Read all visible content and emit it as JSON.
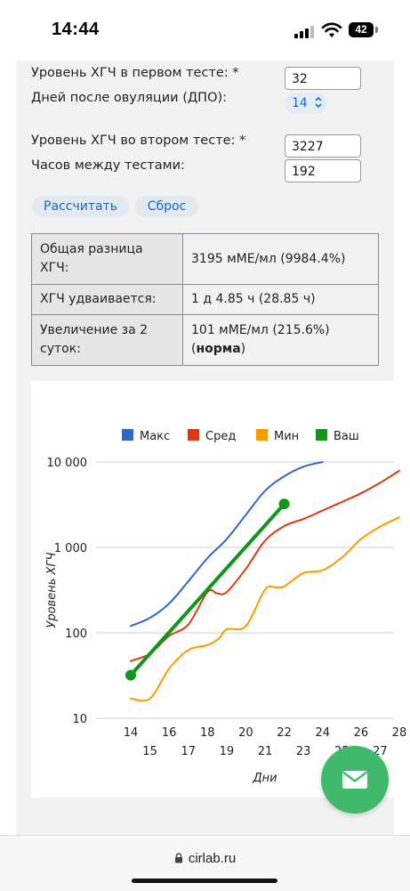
{
  "status_bar": {
    "time": "14:44",
    "battery": "42"
  },
  "form": {
    "hcg1_label": "Уровень ХГЧ в первом тесте: *",
    "hcg1_value": "32",
    "dpo_label": "Дней после овуляции (ДПО):",
    "dpo_value": "14",
    "hcg2_label": "Уровень ХГЧ во втором тесте: *",
    "hcg2_value": "3227",
    "hours_label": "Часов между тестами:",
    "hours_value": "192",
    "calculate_label": "Рассчитать",
    "reset_label": "Сброс"
  },
  "results": {
    "rows": [
      {
        "key": "Общая разница ХГЧ:",
        "value": "3195 мМЕ/мл (9984.4%)"
      },
      {
        "key": "ХГЧ удваивается:",
        "value": "1 д 4.85 ч (28.85 ч)"
      },
      {
        "key": "Увеличение за 2 суток:",
        "value_prefix": "101 мМЕ/мл (215.6%) (",
        "value_bold": "норма",
        "value_suffix": ")"
      }
    ]
  },
  "chart_data": {
    "type": "line",
    "legend_position": "top",
    "series": [
      {
        "name": "Макс",
        "color": "#3366cc",
        "x": [
          14,
          15,
          16,
          17,
          18,
          19,
          20,
          21,
          22,
          23,
          24
        ],
        "values": [
          120,
          150,
          220,
          400,
          750,
          1250,
          2400,
          4600,
          6800,
          8800,
          10000
        ]
      },
      {
        "name": "Сред",
        "color": "#dc3912",
        "x": [
          14,
          15,
          16,
          17,
          18,
          18.5,
          19,
          20,
          21,
          22,
          23,
          24,
          25,
          26,
          27,
          28
        ],
        "values": [
          47,
          57,
          92,
          125,
          300,
          290,
          300,
          560,
          1200,
          1780,
          2150,
          2700,
          3400,
          4300,
          5700,
          7900
        ]
      },
      {
        "name": "Мин",
        "color": "#ff9900",
        "x": [
          14,
          15,
          16,
          17,
          18,
          18.6,
          19,
          20,
          21,
          21.6,
          22,
          23,
          24,
          25,
          26,
          27,
          28
        ],
        "values": [
          17,
          17,
          38,
          63,
          72,
          86,
          110,
          120,
          320,
          340,
          350,
          500,
          540,
          760,
          1250,
          1750,
          2250
        ]
      },
      {
        "name": "Ваш",
        "color": "#109618",
        "x": [
          14,
          22
        ],
        "values": [
          32,
          3227
        ]
      }
    ],
    "x_ticks_row1": [
      "14",
      "16",
      "18",
      "20",
      "22",
      "24",
      "26",
      "28"
    ],
    "x_ticks_row2": [
      "15",
      "17",
      "19",
      "21",
      "23",
      "25",
      "27"
    ],
    "y_ticks": [
      "10 000",
      "1 000",
      "100",
      "10"
    ],
    "y_scale": "log",
    "ylim": [
      10,
      10000
    ],
    "xlim": [
      14,
      28
    ],
    "xlabel": "Дни",
    "ylabel": "Уровень ХГЧ",
    "grid": true
  },
  "browser": {
    "url": "cirlab.ru"
  },
  "colors": {
    "link_blue": "#1a66c8",
    "fab_green": "#3fba6b"
  },
  "icons": {
    "fab": "mail-icon",
    "lock": "lock-icon"
  }
}
